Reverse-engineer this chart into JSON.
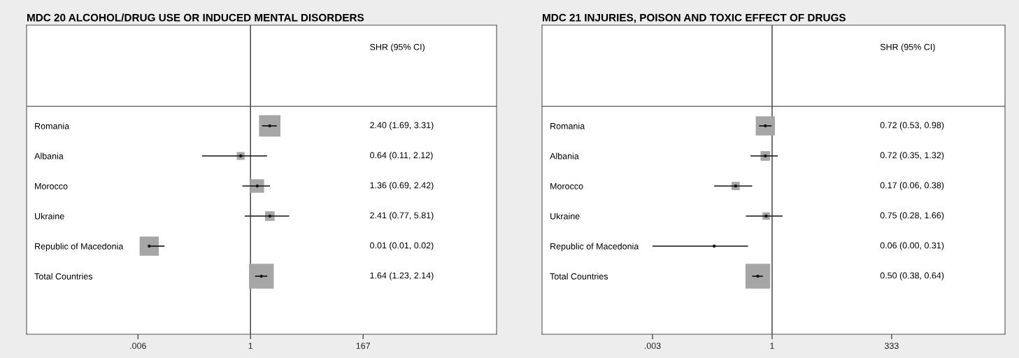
{
  "chart_data": [
    {
      "type": "bubble",
      "orientation": "horizontal",
      "title": "MDC 20 ALCOHOL/DRUG USE OR INDUCED MENTAL DISORDERS",
      "log": "x",
      "marker": "square",
      "color": "#a6a6a6",
      "categories": [
        "Romania",
        "Albania",
        "Morocco",
        "Ukraine",
        "Republic of Macedonia",
        "Total Countries"
      ],
      "values": [
        2.4,
        0.64,
        1.36,
        2.41,
        0.01,
        1.64
      ],
      "errors": [
        [
          1.69,
          3.31
        ],
        [
          0.11,
          2.12
        ],
        [
          0.69,
          2.42
        ],
        [
          0.77,
          5.81
        ],
        [
          0.01,
          0.02
        ],
        [
          1.23,
          2.14
        ]
      ],
      "sizes": [
        0.75,
        0.1,
        0.3,
        0.15,
        0.6,
        1
      ],
      "annotations": [
        "SHR (95% CI)",
        "2.40 (1.69, 3.31)",
        "0.64 (0.11, 2.12)",
        "1.36 (0.69, 2.42)",
        "2.41 (0.77, 5.81)",
        "0.01 (0.01, 0.02)",
        "1.64 (1.23, 2.14)"
      ],
      "xlim": [
        3.8e-05,
        72000
      ],
      "xticks": [
        {
          "value": 0.006,
          "label": ".006"
        },
        1,
        167
      ],
      "ref_lines": [
        {
          "axis": "x",
          "value": 1,
          "label": null
        }
      ]
    },
    {
      "type": "bubble",
      "orientation": "horizontal",
      "title": "MDC 21 INJURIES, POISON AND TOXIC EFFECT OF DRUGS",
      "log": "x",
      "marker": "square",
      "color": "#a6a6a6",
      "categories": [
        "Romania",
        "Albania",
        "Morocco",
        "Ukraine",
        "Republic of Macedonia",
        "Total Countries"
      ],
      "values": [
        0.72,
        0.72,
        0.17,
        0.75,
        0.06,
        0.5
      ],
      "errors": [
        [
          0.53,
          0.98
        ],
        [
          0.35,
          1.32
        ],
        [
          0.06,
          0.38
        ],
        [
          0.28,
          1.66
        ],
        [
          0.003,
          0.31
        ],
        [
          0.38,
          0.64
        ]
      ],
      "sizes": [
        0.6,
        0.15,
        0.11,
        0.09,
        0.01,
        1
      ],
      "annotations": [
        "SHR (95% CI)",
        "0.72 (0.53, 0.98)",
        "0.72 (0.35, 1.32)",
        "0.17 (0.06, 0.38)",
        "0.75 (0.28, 1.66)",
        "0.06 (0.00, 0.31)",
        "0.50 (0.38, 0.64)"
      ],
      "xlim": [
        1.4e-05,
        82000
      ],
      "xticks": [
        {
          "value": 0.003,
          "label": ".003"
        },
        1,
        333
      ],
      "ref_lines": [
        {
          "axis": "x",
          "value": 1,
          "label": null
        }
      ]
    }
  ]
}
